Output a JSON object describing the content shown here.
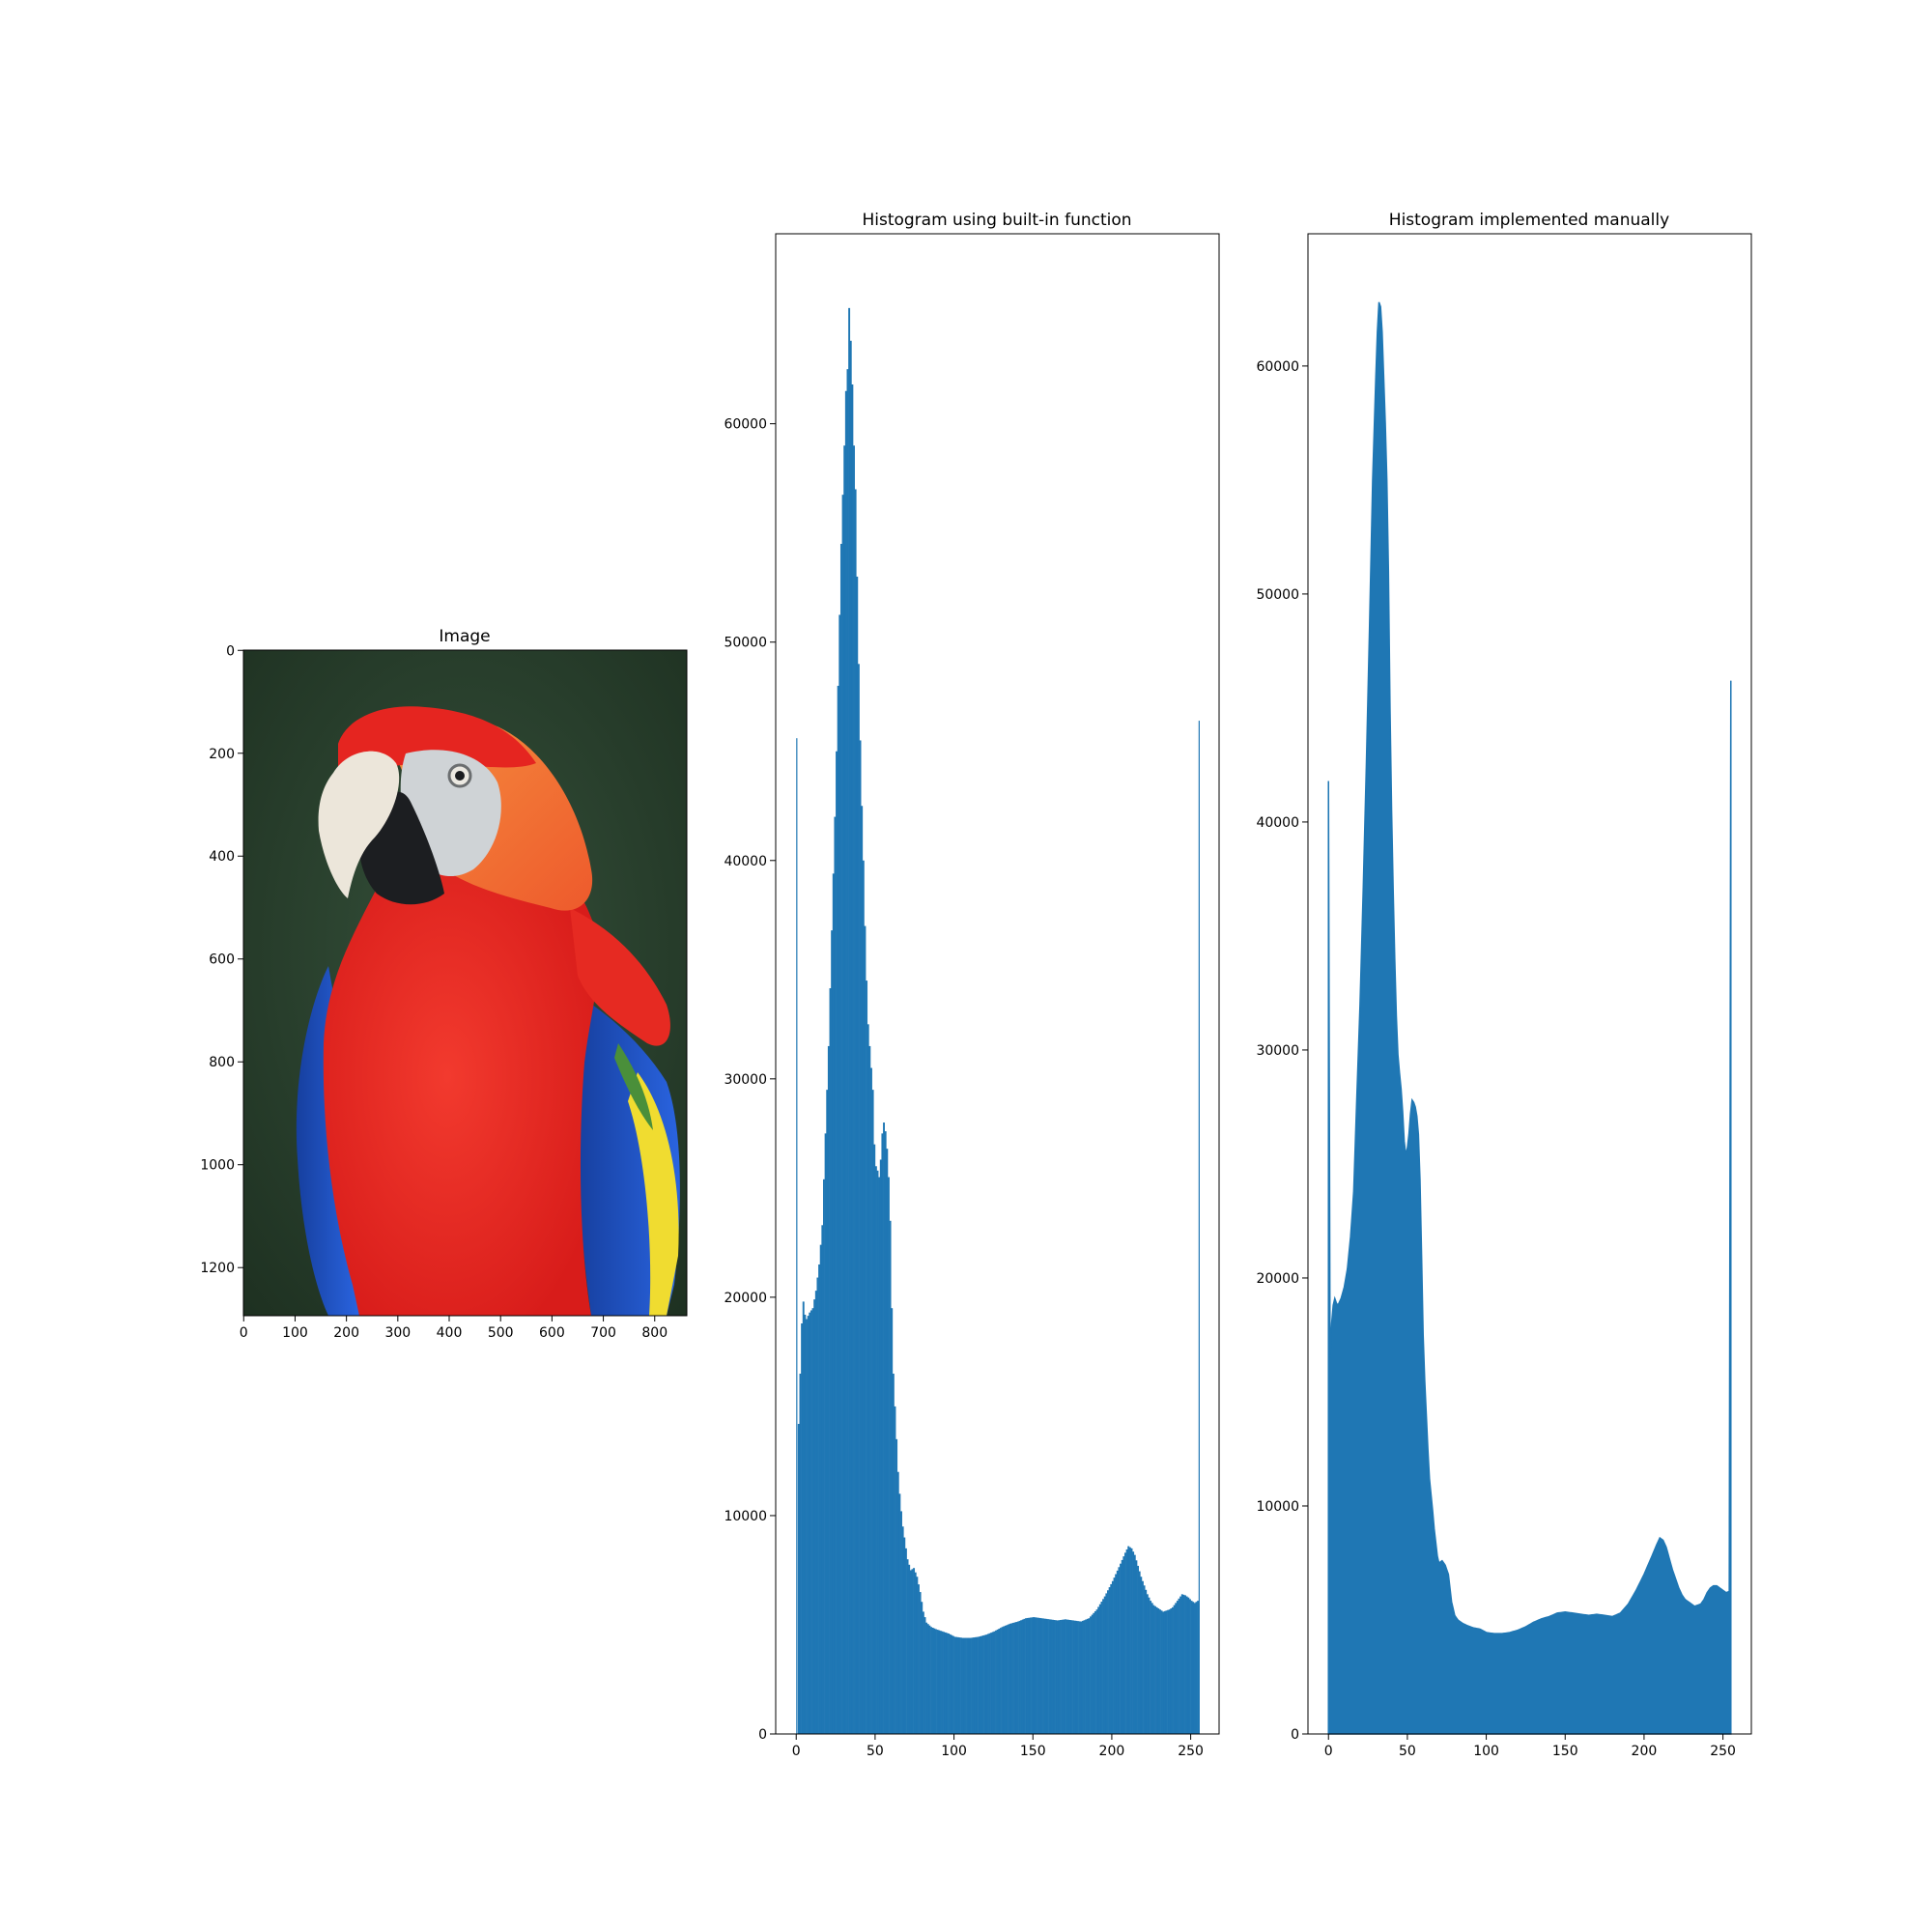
{
  "image_panel": {
    "title": "Image",
    "x_ticks": [
      0,
      100,
      200,
      300,
      400,
      500,
      600,
      700,
      800
    ],
    "y_ticks": [
      0,
      200,
      400,
      600,
      800,
      1000,
      1200
    ],
    "xlim": [
      -0.5,
      862.5
    ],
    "ylim": [
      1293.5,
      -0.5
    ],
    "subject": "scarlet macaw parrot",
    "colors": {
      "background": "#243a26",
      "red": "#e8231f",
      "orange": "#f07a3a",
      "beak": "#ece6da",
      "face": "#cfd3d6",
      "black": "#1c1e21",
      "blue": "#1f52c9",
      "yellow": "#f0dc30",
      "green": "#4a8f3a"
    }
  },
  "chart_data": [
    {
      "type": "bar",
      "title": "Histogram using built-in function",
      "xlabel": "",
      "ylabel": "",
      "xlim": [
        -13,
        268
      ],
      "ylim": [
        0,
        68700
      ],
      "x_ticks": [
        0,
        50,
        100,
        150,
        200,
        250
      ],
      "y_ticks": [
        0,
        10000,
        20000,
        30000,
        40000,
        50000,
        60000
      ],
      "color": "#1f77b4",
      "bins": 256,
      "keypoints": [
        [
          0,
          45600
        ],
        [
          1,
          14200
        ],
        [
          2,
          16500
        ],
        [
          3,
          18800
        ],
        [
          4,
          19800
        ],
        [
          5,
          19200
        ],
        [
          6,
          19000
        ],
        [
          8,
          19300
        ],
        [
          10,
          19500
        ],
        [
          12,
          20300
        ],
        [
          14,
          21500
        ],
        [
          16,
          23300
        ],
        [
          18,
          27500
        ],
        [
          20,
          31500
        ],
        [
          22,
          36800
        ],
        [
          24,
          42000
        ],
        [
          26,
          48000
        ],
        [
          28,
          54500
        ],
        [
          30,
          59000
        ],
        [
          31,
          61500
        ],
        [
          32,
          62500
        ],
        [
          33,
          65300
        ],
        [
          34,
          63800
        ],
        [
          35,
          61800
        ],
        [
          36,
          59000
        ],
        [
          37,
          57000
        ],
        [
          38,
          53000
        ],
        [
          39,
          49000
        ],
        [
          40,
          45500
        ],
        [
          41,
          42500
        ],
        [
          42,
          40000
        ],
        [
          43,
          37000
        ],
        [
          44,
          34500
        ],
        [
          45,
          32500
        ],
        [
          46,
          31500
        ],
        [
          47,
          30500
        ],
        [
          48,
          29500
        ],
        [
          49,
          27000
        ],
        [
          50,
          26000
        ],
        [
          51,
          25800
        ],
        [
          52,
          25500
        ],
        [
          53,
          26300
        ],
        [
          54,
          27500
        ],
        [
          55,
          28000
        ],
        [
          56,
          27600
        ],
        [
          57,
          26800
        ],
        [
          58,
          25500
        ],
        [
          59,
          23500
        ],
        [
          60,
          19500
        ],
        [
          61,
          16500
        ],
        [
          62,
          15000
        ],
        [
          63,
          13500
        ],
        [
          64,
          12000
        ],
        [
          65,
          11000
        ],
        [
          66,
          10200
        ],
        [
          67,
          9500
        ],
        [
          68,
          9000
        ],
        [
          70,
          8000
        ],
        [
          72,
          7500
        ],
        [
          74,
          7600
        ],
        [
          76,
          7200
        ],
        [
          78,
          6500
        ],
        [
          80,
          5600
        ],
        [
          82,
          5100
        ],
        [
          85,
          4900
        ],
        [
          88,
          4800
        ],
        [
          92,
          4700
        ],
        [
          96,
          4600
        ],
        [
          100,
          4450
        ],
        [
          105,
          4400
        ],
        [
          110,
          4400
        ],
        [
          115,
          4450
        ],
        [
          120,
          4550
        ],
        [
          125,
          4700
        ],
        [
          130,
          4900
        ],
        [
          135,
          5050
        ],
        [
          140,
          5150
        ],
        [
          145,
          5300
        ],
        [
          150,
          5350
        ],
        [
          155,
          5300
        ],
        [
          160,
          5250
        ],
        [
          165,
          5200
        ],
        [
          170,
          5250
        ],
        [
          175,
          5200
        ],
        [
          180,
          5150
        ],
        [
          185,
          5300
        ],
        [
          190,
          5700
        ],
        [
          195,
          6300
        ],
        [
          200,
          7000
        ],
        [
          205,
          7800
        ],
        [
          208,
          8300
        ],
        [
          210,
          8600
        ],
        [
          212,
          8500
        ],
        [
          214,
          8200
        ],
        [
          216,
          7700
        ],
        [
          218,
          7200
        ],
        [
          220,
          6800
        ],
        [
          222,
          6400
        ],
        [
          224,
          6100
        ],
        [
          226,
          5900
        ],
        [
          228,
          5800
        ],
        [
          230,
          5700
        ],
        [
          232,
          5600
        ],
        [
          234,
          5650
        ],
        [
          236,
          5700
        ],
        [
          238,
          5800
        ],
        [
          240,
          6000
        ],
        [
          242,
          6200
        ],
        [
          244,
          6400
        ],
        [
          246,
          6350
        ],
        [
          248,
          6250
        ],
        [
          250,
          6100
        ],
        [
          252,
          6000
        ],
        [
          254,
          6100
        ],
        [
          255,
          46400
        ]
      ]
    },
    {
      "type": "area",
      "title": "Histogram implemented manually",
      "xlabel": "",
      "ylabel": "",
      "xlim": [
        -13,
        268
      ],
      "ylim": [
        0,
        65800
      ],
      "x_ticks": [
        0,
        50,
        100,
        150,
        200,
        250
      ],
      "y_ticks": [
        0,
        10000,
        20000,
        30000,
        40000,
        50000,
        60000
      ],
      "color": "#1f77b4",
      "keypoints": [
        [
          0,
          41800
        ],
        [
          1,
          16500
        ],
        [
          2,
          18000
        ],
        [
          3,
          18800
        ],
        [
          4,
          19100
        ],
        [
          5,
          18900
        ],
        [
          6,
          18800
        ],
        [
          8,
          19100
        ],
        [
          10,
          19600
        ],
        [
          12,
          20400
        ],
        [
          14,
          21800
        ],
        [
          16,
          23800
        ],
        [
          18,
          28000
        ],
        [
          20,
          32000
        ],
        [
          22,
          37000
        ],
        [
          24,
          42500
        ],
        [
          26,
          48500
        ],
        [
          28,
          55000
        ],
        [
          30,
          59500
        ],
        [
          31,
          61500
        ],
        [
          32,
          62800
        ],
        [
          33,
          62600
        ],
        [
          34,
          61500
        ],
        [
          35,
          59500
        ],
        [
          36,
          57500
        ],
        [
          37,
          55000
        ],
        [
          38,
          51000
        ],
        [
          39,
          45000
        ],
        [
          40,
          40500
        ],
        [
          41,
          37000
        ],
        [
          42,
          34000
        ],
        [
          43,
          31500
        ],
        [
          44,
          29800
        ],
        [
          45,
          29000
        ],
        [
          46,
          28300
        ],
        [
          47,
          27300
        ],
        [
          48,
          26000
        ],
        [
          49,
          25400
        ],
        [
          50,
          25700
        ],
        [
          51,
          26300
        ],
        [
          52,
          27200
        ],
        [
          53,
          27800
        ],
        [
          54,
          27700
        ],
        [
          55,
          27500
        ],
        [
          56,
          27100
        ],
        [
          57,
          26300
        ],
        [
          58,
          24300
        ],
        [
          59,
          21000
        ],
        [
          60,
          17500
        ],
        [
          61,
          15500
        ],
        [
          62,
          14000
        ],
        [
          63,
          12500
        ],
        [
          64,
          11200
        ],
        [
          65,
          10500
        ],
        [
          66,
          9800
        ],
        [
          67,
          9000
        ],
        [
          68,
          8400
        ],
        [
          69,
          7800
        ],
        [
          70,
          7500
        ],
        [
          72,
          7600
        ],
        [
          74,
          7400
        ],
        [
          76,
          7000
        ],
        [
          78,
          5800
        ],
        [
          80,
          5200
        ],
        [
          82,
          5000
        ],
        [
          85,
          4850
        ],
        [
          88,
          4750
        ],
        [
          92,
          4650
        ],
        [
          96,
          4600
        ],
        [
          100,
          4450
        ],
        [
          105,
          4400
        ],
        [
          110,
          4400
        ],
        [
          115,
          4450
        ],
        [
          120,
          4550
        ],
        [
          125,
          4700
        ],
        [
          130,
          4900
        ],
        [
          135,
          5050
        ],
        [
          140,
          5150
        ],
        [
          145,
          5300
        ],
        [
          150,
          5350
        ],
        [
          155,
          5300
        ],
        [
          160,
          5250
        ],
        [
          165,
          5200
        ],
        [
          170,
          5250
        ],
        [
          175,
          5200
        ],
        [
          180,
          5150
        ],
        [
          185,
          5300
        ],
        [
          190,
          5700
        ],
        [
          195,
          6300
        ],
        [
          200,
          7000
        ],
        [
          205,
          7800
        ],
        [
          208,
          8300
        ],
        [
          210,
          8600
        ],
        [
          212,
          8500
        ],
        [
          214,
          8200
        ],
        [
          216,
          7700
        ],
        [
          218,
          7200
        ],
        [
          220,
          6800
        ],
        [
          222,
          6400
        ],
        [
          224,
          6100
        ],
        [
          226,
          5900
        ],
        [
          228,
          5800
        ],
        [
          230,
          5700
        ],
        [
          232,
          5600
        ],
        [
          234,
          5650
        ],
        [
          236,
          5700
        ],
        [
          238,
          5900
        ],
        [
          240,
          6200
        ],
        [
          242,
          6400
        ],
        [
          244,
          6500
        ],
        [
          246,
          6500
        ],
        [
          248,
          6400
        ],
        [
          250,
          6300
        ],
        [
          252,
          6200
        ],
        [
          254,
          6250
        ],
        [
          255,
          46200
        ]
      ]
    }
  ]
}
